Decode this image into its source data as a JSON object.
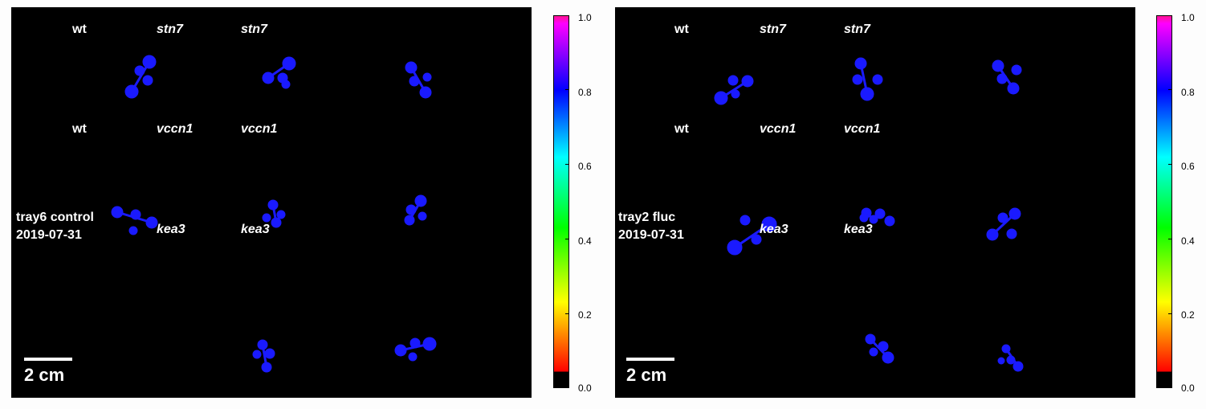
{
  "panels": [
    {
      "labels": {
        "r1c1": "wt",
        "r1c2": "stn7",
        "r1c3": "stn7",
        "r2c1": "wt",
        "r2c2": "vccn1",
        "r2c3": "vccn1",
        "r3c2": "kea3",
        "r3c3": "kea3"
      },
      "tray_line1": "tray6 control",
      "tray_line2": "2019-07-31",
      "scale_label": "2 cm"
    },
    {
      "labels": {
        "r1c1": "wt",
        "r1c2": "stn7",
        "r1c3": "stn7",
        "r2c1": "wt",
        "r2c2": "vccn1",
        "r2c3": "vccn1",
        "r3c2": "kea3",
        "r3c3": "kea3"
      },
      "tray_line1": "tray2 fluc",
      "tray_line2": "2019-07-31",
      "scale_label": "2 cm"
    }
  ],
  "colorbar": {
    "ticks": [
      "1.0",
      "0.8",
      "0.6",
      "0.4",
      "0.2",
      "0.0"
    ],
    "colors": [
      "#000000",
      "#ff0000",
      "#ffff00",
      "#00ff00",
      "#00ffff",
      "#0000ff",
      "#ff00ff"
    ]
  },
  "plant_color": "#1a1aff"
}
